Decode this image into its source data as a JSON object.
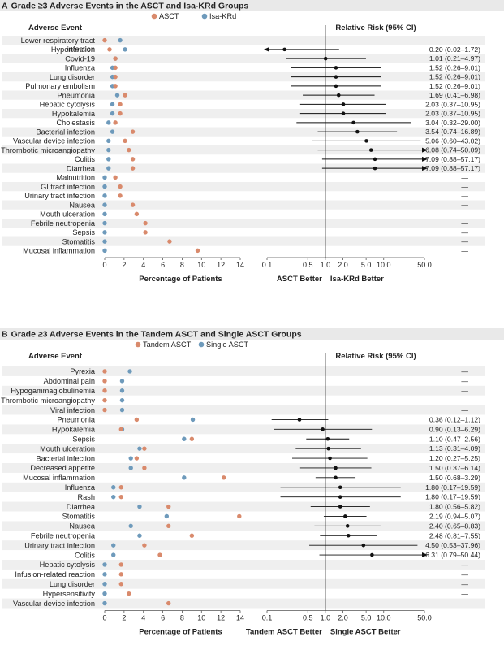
{
  "colors": {
    "primary": "#d98a6c",
    "secondary": "#6e9abb",
    "stripe": "#efefef",
    "text": "#222222"
  },
  "chart_data": [
    {
      "type": "dot-forest",
      "panel_letter": "A",
      "title": "Grade ≥3 Adverse Events in the ASCT and Isa-KRd Groups",
      "legend": [
        "ASCT",
        "Isa-KRd"
      ],
      "col_event": "Adverse Event",
      "col_rr": "Relative Risk (95% CI)",
      "x_ticks": [
        "0",
        "2",
        "4",
        "6",
        "8",
        "10",
        "12",
        "14"
      ],
      "x_range": [
        0,
        14
      ],
      "xlabel": "Percentage of Patients",
      "rr_ticks": [
        "0.1",
        "0.5",
        "1.0",
        "2.0",
        "5.0",
        "10.0",
        "50.0"
      ],
      "rr_range": [
        0.1,
        50
      ],
      "favor_left": "ASCT Better",
      "favor_right": "Isa-KRd Better",
      "rows": [
        {
          "label": "Lower respiratory tract",
          "label2": "infection",
          "a": 0.0,
          "b": 1.6,
          "rr": null,
          "text": "—"
        },
        {
          "label": "Hypertension",
          "a": 0.5,
          "b": 2.1,
          "rr": 0.2,
          "lo": 0.02,
          "hi": 1.72,
          "text": "0.20 (0.02–1.72)"
        },
        {
          "label": "Covid-19",
          "a": 1.1,
          "b": 1.1,
          "rr": 1.01,
          "lo": 0.21,
          "hi": 4.97,
          "text": "1.01 (0.21–4.97)"
        },
        {
          "label": "Influenza",
          "a": 1.1,
          "b": 0.8,
          "rr": 1.52,
          "lo": 0.26,
          "hi": 9.01,
          "text": "1.52 (0.26–9.01)"
        },
        {
          "label": "Lung disorder",
          "a": 1.1,
          "b": 0.8,
          "rr": 1.52,
          "lo": 0.26,
          "hi": 9.01,
          "text": "1.52 (0.26–9.01)"
        },
        {
          "label": "Pulmonary embolism",
          "a": 1.1,
          "b": 0.8,
          "rr": 1.52,
          "lo": 0.26,
          "hi": 9.01,
          "text": "1.52 (0.26–9.01)"
        },
        {
          "label": "Pneumonia",
          "a": 2.1,
          "b": 1.3,
          "rr": 1.69,
          "lo": 0.41,
          "hi": 6.98,
          "text": "1.69 (0.41–6.98)"
        },
        {
          "label": "Hepatic cytolysis",
          "a": 1.6,
          "b": 0.8,
          "rr": 2.03,
          "lo": 0.37,
          "hi": 10.95,
          "text": "2.03 (0.37–10.95)"
        },
        {
          "label": "Hypokalemia",
          "a": 1.6,
          "b": 0.8,
          "rr": 2.03,
          "lo": 0.37,
          "hi": 10.95,
          "text": "2.03 (0.37–10.95)"
        },
        {
          "label": "Cholestasis",
          "a": 1.1,
          "b": 0.4,
          "rr": 3.04,
          "lo": 0.32,
          "hi": 29.0,
          "text": "3.04 (0.32–29.00)"
        },
        {
          "label": "Bacterial infection",
          "a": 2.9,
          "b": 0.8,
          "rr": 3.54,
          "lo": 0.74,
          "hi": 16.89,
          "text": "3.54 (0.74–16.89)"
        },
        {
          "label": "Vascular device infection",
          "a": 2.1,
          "b": 0.4,
          "rr": 5.06,
          "lo": 0.6,
          "hi": 43.02,
          "text": "5.06 (0.60–43.02)"
        },
        {
          "label": "Thrombotic microangiopathy",
          "a": 2.5,
          "b": 0.4,
          "rr": 6.08,
          "lo": 0.74,
          "hi": 50.09,
          "arrow": true,
          "text": "6.08 (0.74–50.09)"
        },
        {
          "label": "Colitis",
          "a": 2.9,
          "b": 0.4,
          "rr": 7.09,
          "lo": 0.88,
          "hi": 57.17,
          "arrow": true,
          "text": "7.09 (0.88–57.17)"
        },
        {
          "label": "Diarrhea",
          "a": 2.9,
          "b": 0.4,
          "rr": 7.09,
          "lo": 0.88,
          "hi": 57.17,
          "arrow": true,
          "text": "7.09 (0.88–57.17)"
        },
        {
          "label": "Malnutrition",
          "a": 1.1,
          "b": 0.0,
          "rr": null,
          "text": "—"
        },
        {
          "label": "GI tract infection",
          "a": 1.6,
          "b": 0.0,
          "rr": null,
          "text": "—"
        },
        {
          "label": "Urinary tract infection",
          "a": 1.6,
          "b": 0.0,
          "rr": null,
          "text": "—"
        },
        {
          "label": "Nausea",
          "a": 2.9,
          "b": 0.0,
          "rr": null,
          "text": "—"
        },
        {
          "label": "Mouth ulceration",
          "a": 3.3,
          "b": 0.0,
          "rr": null,
          "text": "—"
        },
        {
          "label": "Febrile neutropenia",
          "a": 4.2,
          "b": 0.0,
          "rr": null,
          "text": "—"
        },
        {
          "label": "Sepsis",
          "a": 4.2,
          "b": 0.0,
          "rr": null,
          "text": "—"
        },
        {
          "label": "Stomatitis",
          "a": 6.7,
          "b": 0.0,
          "rr": null,
          "text": "—"
        },
        {
          "label": "Mucosal inflammation",
          "a": 9.6,
          "b": 0.0,
          "rr": null,
          "text": "—"
        }
      ]
    },
    {
      "type": "dot-forest",
      "panel_letter": "B",
      "title": "Grade ≥3 Adverse Events in the Tandem ASCT and Single ASCT Groups",
      "legend": [
        "Tandem ASCT",
        "Single ASCT"
      ],
      "col_event": "Adverse Event",
      "col_rr": "Relative Risk (95% CI)",
      "x_ticks": [
        "0",
        "2",
        "4",
        "6",
        "8",
        "10",
        "12",
        "14"
      ],
      "x_range": [
        0,
        14
      ],
      "xlabel": "Percentage of Patients",
      "rr_ticks": [
        "0.1",
        "0.5",
        "1.0",
        "2.0",
        "5.0",
        "10.0",
        "50.0"
      ],
      "rr_range": [
        0.1,
        50
      ],
      "favor_left": "Tandem ASCT Better",
      "favor_right": "Single ASCT Better",
      "rows": [
        {
          "label": "Pyrexia",
          "a": 0.0,
          "b": 2.6,
          "rr": null,
          "text": "—"
        },
        {
          "label": "Abdominal pain",
          "a": 0.0,
          "b": 1.8,
          "rr": null,
          "text": "—"
        },
        {
          "label": "Hypogammaglobulinemia",
          "a": 0.0,
          "b": 1.8,
          "rr": null,
          "text": "—"
        },
        {
          "label": "Thrombotic microangiopathy",
          "a": 0.0,
          "b": 1.8,
          "rr": null,
          "text": "—"
        },
        {
          "label": "Viral infection",
          "a": 0.0,
          "b": 1.8,
          "rr": null,
          "text": "—"
        },
        {
          "label": "Pneumonia",
          "a": 3.3,
          "b": 9.1,
          "rr": 0.36,
          "lo": 0.12,
          "hi": 1.12,
          "text": "0.36 (0.12–1.12)"
        },
        {
          "label": "Hypokalemia",
          "a": 1.7,
          "b": 1.8,
          "rr": 0.9,
          "lo": 0.13,
          "hi": 6.29,
          "text": "0.90 (0.13–6.29)"
        },
        {
          "label": "Sepsis",
          "a": 9.0,
          "b": 8.2,
          "rr": 1.1,
          "lo": 0.47,
          "hi": 2.56,
          "text": "1.10 (0.47–2.56)"
        },
        {
          "label": "Mouth ulceration",
          "a": 4.1,
          "b": 3.6,
          "rr": 1.13,
          "lo": 0.31,
          "hi": 4.09,
          "text": "1.13 (0.31–4.09)"
        },
        {
          "label": "Bacterial infection",
          "a": 3.3,
          "b": 2.7,
          "rr": 1.2,
          "lo": 0.27,
          "hi": 5.25,
          "text": "1.20 (0.27–5.25)"
        },
        {
          "label": "Decreased appetite",
          "a": 4.1,
          "b": 2.7,
          "rr": 1.5,
          "lo": 0.37,
          "hi": 6.14,
          "text": "1.50 (0.37–6.14)"
        },
        {
          "label": "Mucosal inflammation",
          "a": 12.3,
          "b": 8.2,
          "rr": 1.5,
          "lo": 0.68,
          "hi": 3.29,
          "text": "1.50 (0.68–3.29)"
        },
        {
          "label": "Influenza",
          "a": 1.7,
          "b": 0.9,
          "rr": 1.8,
          "lo": 0.17,
          "hi": 19.59,
          "text": "1.80 (0.17–19.59)"
        },
        {
          "label": "Rash",
          "a": 1.7,
          "b": 0.9,
          "rr": 1.8,
          "lo": 0.17,
          "hi": 19.59,
          "text": "1.80 (0.17–19.59)"
        },
        {
          "label": "Diarrhea",
          "a": 6.6,
          "b": 3.6,
          "rr": 1.8,
          "lo": 0.56,
          "hi": 5.82,
          "text": "1.80 (0.56–5.82)"
        },
        {
          "label": "Stomatitis",
          "a": 13.9,
          "b": 6.4,
          "rr": 2.19,
          "lo": 0.94,
          "hi": 5.07,
          "text": "2.19 (0.94–5.07)"
        },
        {
          "label": "Nausea",
          "a": 6.6,
          "b": 2.7,
          "rr": 2.4,
          "lo": 0.65,
          "hi": 8.83,
          "text": "2.40 (0.65–8.83)"
        },
        {
          "label": "Febrile neutropenia",
          "a": 9.0,
          "b": 3.6,
          "rr": 2.48,
          "lo": 0.81,
          "hi": 7.55,
          "text": "2.48 (0.81–7.55)"
        },
        {
          "label": "Urinary tract infection",
          "a": 4.1,
          "b": 0.9,
          "rr": 4.5,
          "lo": 0.53,
          "hi": 37.96,
          "text": "4.50 (0.53–37.96)"
        },
        {
          "label": "Colitis",
          "a": 5.7,
          "b": 0.9,
          "rr": 6.31,
          "lo": 0.79,
          "hi": 50.44,
          "arrow": true,
          "text": "6.31 (0.79–50.44)"
        },
        {
          "label": "Hepatic cytolysis",
          "a": 1.7,
          "b": 0.0,
          "rr": null,
          "text": "—"
        },
        {
          "label": "Infusion-related reaction",
          "a": 1.7,
          "b": 0.0,
          "rr": null,
          "text": "—"
        },
        {
          "label": "Lung disorder",
          "a": 1.7,
          "b": 0.0,
          "rr": null,
          "text": "—"
        },
        {
          "label": "Hypersensitivity",
          "a": 2.5,
          "b": 0.0,
          "rr": null,
          "text": "—"
        },
        {
          "label": "Vascular device infection",
          "a": 6.6,
          "b": 0.0,
          "rr": null,
          "text": "—"
        }
      ]
    }
  ]
}
